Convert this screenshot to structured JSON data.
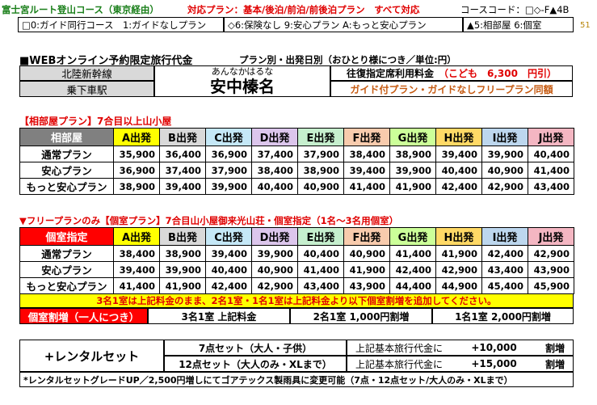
{
  "header": {
    "course_title": "富士宮ルート登山コース（東京経由）",
    "plan_support": "対応プラン：基本/後泊/前泊/前後泊プラン　すべて対応",
    "course_code": "コースコード：□◇-F▲4B",
    "page_number": "51"
  },
  "guide_options": {
    "opt1": "□0:ガイド同行コース　1:ガイドなしプラン",
    "opt2": "◇6:保険なし 9:安心プラン A:もっと安心プラン",
    "opt3": "▲5:相部屋 6:個室"
  },
  "section_title": "■WEBオンライン予約限定旅行代金",
  "section_subtitle": "プラン別・出発日別（おひとり様につき／単位:円）",
  "transport": {
    "line": "北陸新幹線",
    "station": "乗下車駅",
    "reading": "あんなかはるな",
    "name": "安中榛名",
    "seat_label": "往復指定席利用料金",
    "child_fee": "（こども　6,300　円引）",
    "same_price_note": "ガイド付プラン・ガイドなしフリープラン同額"
  },
  "shared": {
    "heading": "【相部屋プラン】7合目以上山小屋",
    "corner_label": "相部屋",
    "columns": [
      "A出発",
      "B出発",
      "C出発",
      "D出発",
      "E出発",
      "F出発",
      "G出発",
      "H出発",
      "I出発",
      "J出発"
    ],
    "rows": [
      {
        "label": "通常プラン",
        "values": [
          "35,900",
          "36,400",
          "36,900",
          "37,400",
          "37,900",
          "38,400",
          "38,900",
          "39,400",
          "39,900",
          "40,400"
        ]
      },
      {
        "label": "安心プラン",
        "values": [
          "36,900",
          "37,400",
          "37,900",
          "38,400",
          "38,900",
          "39,400",
          "39,900",
          "40,400",
          "40,900",
          "41,400"
        ]
      },
      {
        "label": "もっと安心プラン",
        "values": [
          "38,900",
          "39,400",
          "39,900",
          "40,400",
          "40,900",
          "41,400",
          "41,900",
          "42,400",
          "42,900",
          "43,400"
        ]
      }
    ]
  },
  "private": {
    "heading": "▼フリープランのみ【個室プラン】7合目山小屋御来光山荘・個室指定（1名～3名用個室）",
    "corner_label": "個室指定",
    "columns": [
      "A出発",
      "B出発",
      "C出発",
      "D出発",
      "E出発",
      "F出発",
      "G出発",
      "H出発",
      "I出発",
      "J出発"
    ],
    "rows": [
      {
        "label": "通常プラン",
        "values": [
          "38,400",
          "38,900",
          "39,400",
          "39,900",
          "40,400",
          "40,900",
          "41,400",
          "41,900",
          "42,400",
          "42,900"
        ]
      },
      {
        "label": "安心プラン",
        "values": [
          "39,400",
          "39,900",
          "40,400",
          "40,900",
          "41,400",
          "41,900",
          "42,400",
          "42,900",
          "43,400",
          "43,900"
        ]
      },
      {
        "label": "もっと安心プラン",
        "values": [
          "41,400",
          "41,900",
          "42,400",
          "42,900",
          "43,400",
          "43,900",
          "44,400",
          "44,900",
          "45,400",
          "45,900"
        ]
      }
    ],
    "note": "3名1室は上記料金のまま、2名1室・1名1室は上記料金より以下個室割増を追加してください。",
    "surcharge_label": "個室割増（一人につき）",
    "surcharges": [
      "3名1室 上記料金",
      "2名1室 1,000円割増",
      "1名1室 2,000円割増"
    ]
  },
  "rental": {
    "title": "+レンタルセット",
    "rows": [
      {
        "set": "7点セット（大人・子供）",
        "desc": "上記基本旅行代金に",
        "amount": "+10,000",
        "unit": "割増"
      },
      {
        "set": "12点セット（大人のみ・XLまで）",
        "desc": "上記基本旅行代金に",
        "amount": "+15,000",
        "unit": "割増"
      }
    ],
    "footnote": "*レンタルセットグレードUP／2,500円増しにてゴアテックス製雨具に変更可能（7点・12点セット/大人のみ・XLまで）"
  },
  "colors": {
    "col_fills": [
      "#ffff00",
      "#d9d9d9",
      "#c5e8f7",
      "#dcc6ec",
      "#c6efce",
      "#f8cbad",
      "#ccff99",
      "#ffd966",
      "#bdd7ee",
      "#f4b6c2"
    ],
    "corner_fill": "#808080",
    "private_corner_fill": "#ff0000",
    "accent_red": "#e00000",
    "note_fill": "#ffff00",
    "transport_fill": "#d9d9d9"
  }
}
